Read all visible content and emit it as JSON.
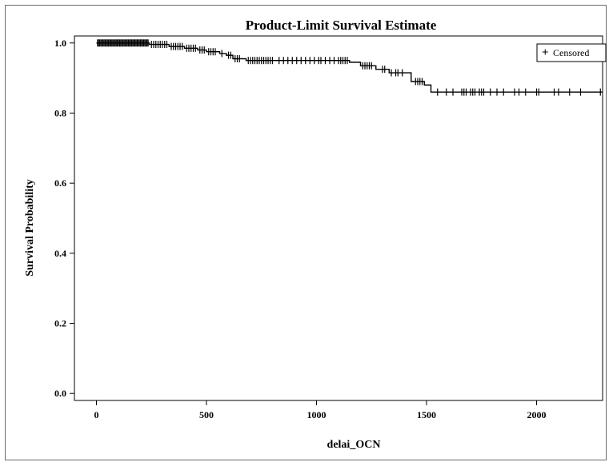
{
  "chart_data": {
    "type": "line",
    "title": "Product-Limit Survival Estimate",
    "xlabel": "delai_OCN",
    "ylabel": "Survival Probability",
    "xlim": [
      -100,
      2300
    ],
    "ylim": [
      -0.02,
      1.02
    ],
    "xticks": [
      0,
      500,
      1000,
      1500,
      2000
    ],
    "xtick_labels": [
      "0",
      "500",
      "1000",
      "1500",
      "2000"
    ],
    "yticks": [
      0.0,
      0.2,
      0.4,
      0.6,
      0.8,
      1.0
    ],
    "ytick_labels": [
      "0.0",
      "0.2",
      "0.4",
      "0.6",
      "0.8",
      "1.0"
    ],
    "grid": false,
    "legend": {
      "position": "top-right",
      "entries": [
        {
          "symbol": "+",
          "label": "Censored"
        }
      ]
    },
    "series": [
      {
        "steps": [
          [
            0,
            1.0
          ],
          [
            240,
            0.996
          ],
          [
            330,
            0.99
          ],
          [
            400,
            0.985
          ],
          [
            460,
            0.98
          ],
          [
            500,
            0.975
          ],
          [
            560,
            0.97
          ],
          [
            590,
            0.965
          ],
          [
            620,
            0.955
          ],
          [
            680,
            0.95
          ],
          [
            1150,
            0.945
          ],
          [
            1200,
            0.935
          ],
          [
            1270,
            0.925
          ],
          [
            1330,
            0.915
          ],
          [
            1430,
            0.89
          ],
          [
            1490,
            0.88
          ],
          [
            1520,
            0.86
          ],
          [
            2300,
            0.86
          ]
        ],
        "censored_x": [
          5,
          10,
          15,
          20,
          25,
          30,
          35,
          40,
          45,
          50,
          55,
          60,
          65,
          70,
          75,
          80,
          85,
          90,
          95,
          100,
          105,
          110,
          115,
          120,
          125,
          130,
          135,
          140,
          145,
          150,
          155,
          160,
          165,
          170,
          175,
          180,
          185,
          190,
          195,
          200,
          205,
          210,
          215,
          220,
          225,
          230,
          235,
          250,
          260,
          270,
          280,
          290,
          300,
          310,
          320,
          340,
          350,
          360,
          370,
          380,
          390,
          410,
          420,
          430,
          440,
          450,
          470,
          480,
          490,
          510,
          520,
          530,
          540,
          570,
          600,
          610,
          630,
          640,
          650,
          690,
          700,
          710,
          720,
          730,
          740,
          750,
          760,
          770,
          780,
          790,
          800,
          830,
          850,
          870,
          890,
          910,
          930,
          950,
          970,
          990,
          1010,
          1020,
          1040,
          1060,
          1080,
          1100,
          1110,
          1120,
          1130,
          1140,
          1210,
          1220,
          1230,
          1240,
          1250,
          1300,
          1310,
          1340,
          1360,
          1370,
          1390,
          1450,
          1460,
          1470,
          1480,
          1550,
          1590,
          1620,
          1660,
          1670,
          1680,
          1700,
          1710,
          1720,
          1740,
          1750,
          1760,
          1790,
          1820,
          1850,
          1900,
          1920,
          1950,
          2000,
          2010,
          2080,
          2100,
          2150,
          2200,
          2290
        ]
      }
    ]
  }
}
